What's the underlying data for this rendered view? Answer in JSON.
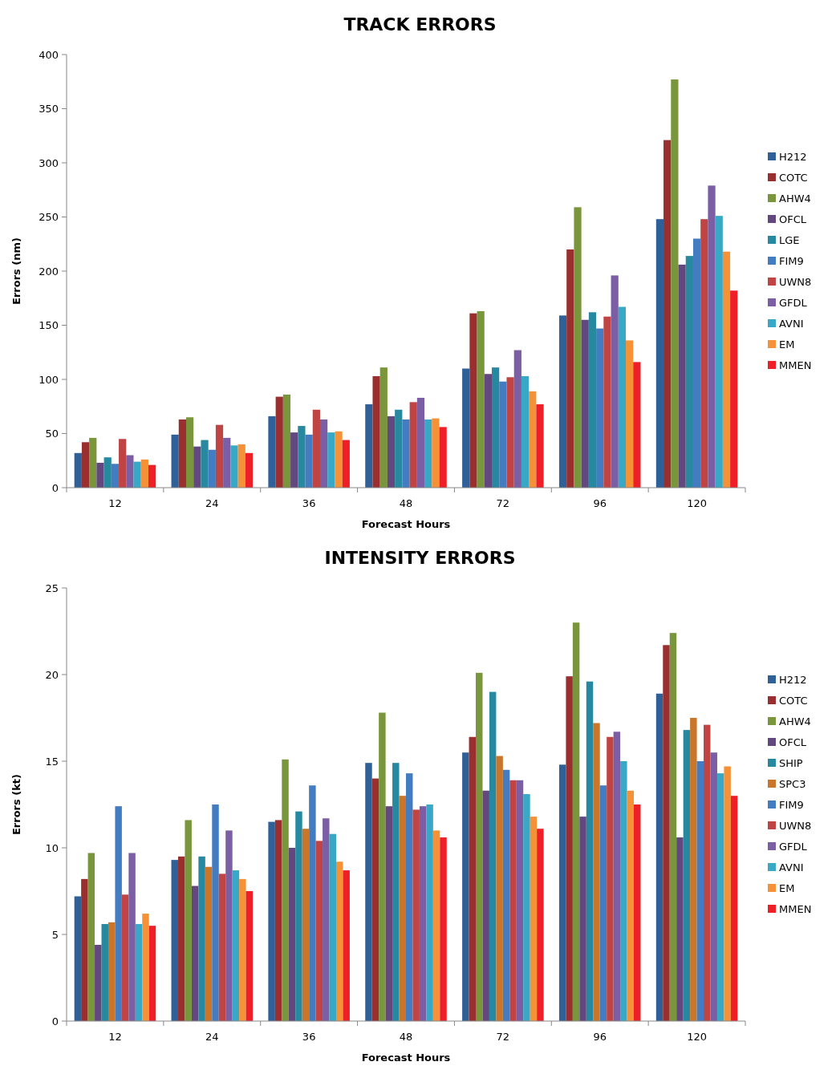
{
  "chart_data": [
    {
      "type": "bar",
      "title": "TRACK ERRORS",
      "xlabel": "Forecast Hours",
      "ylabel": "Errors (nm)",
      "categories": [
        "12",
        "24",
        "36",
        "48",
        "72",
        "96",
        "120"
      ],
      "ylim": [
        0,
        400
      ],
      "yticks": [
        0,
        50,
        100,
        150,
        200,
        250,
        300,
        350,
        400
      ],
      "grid": false,
      "legend": "right",
      "series": [
        {
          "name": "H212",
          "color": "#2f6098",
          "values": [
            32,
            49,
            66,
            77,
            110,
            159,
            248
          ]
        },
        {
          "name": "COTC",
          "color": "#9a2f2f",
          "values": [
            42,
            63,
            84,
            103,
            161,
            220,
            321
          ]
        },
        {
          "name": "AHW4",
          "color": "#7a963c",
          "values": [
            46,
            65,
            86,
            111,
            163,
            259,
            377
          ]
        },
        {
          "name": "OFCL",
          "color": "#63487f",
          "values": [
            23,
            38,
            51,
            66,
            105,
            155,
            206
          ]
        },
        {
          "name": "LGE",
          "color": "#2789a0",
          "values": [
            28,
            44,
            57,
            72,
            111,
            162,
            214
          ]
        },
        {
          "name": "FIM9",
          "color": "#437cc0",
          "values": [
            22,
            35,
            49,
            63,
            98,
            147,
            230
          ]
        },
        {
          "name": "UWN8",
          "color": "#c04444",
          "values": [
            45,
            58,
            72,
            79,
            102,
            158,
            248
          ]
        },
        {
          "name": "GFDL",
          "color": "#7b5ea3",
          "values": [
            30,
            46,
            63,
            83,
            127,
            196,
            279
          ]
        },
        {
          "name": "AVNI",
          "color": "#38a8c6",
          "values": [
            24,
            39,
            51,
            63,
            103,
            167,
            251
          ]
        },
        {
          "name": "EM",
          "color": "#f59237",
          "values": [
            26,
            40,
            52,
            64,
            89,
            136,
            218
          ]
        },
        {
          "name": "MMEN",
          "color": "#ee1f26",
          "values": [
            21,
            32,
            44,
            56,
            77,
            116,
            182
          ]
        }
      ]
    },
    {
      "type": "bar",
      "title": "INTENSITY ERRORS",
      "xlabel": "Forecast Hours",
      "ylabel": "Errors (kt)",
      "categories": [
        "12",
        "24",
        "36",
        "48",
        "72",
        "96",
        "120"
      ],
      "ylim": [
        0,
        25
      ],
      "yticks": [
        0,
        5,
        10,
        15,
        20,
        25
      ],
      "grid": false,
      "legend": "right",
      "series": [
        {
          "name": "H212",
          "color": "#2f6098",
          "values": [
            7.2,
            9.3,
            11.5,
            14.9,
            15.5,
            14.8,
            18.9
          ]
        },
        {
          "name": "COTC",
          "color": "#9a2f2f",
          "values": [
            8.2,
            9.5,
            11.6,
            14.0,
            16.4,
            19.9,
            21.7
          ]
        },
        {
          "name": "AHW4",
          "color": "#7a963c",
          "values": [
            9.7,
            11.6,
            15.1,
            17.8,
            20.1,
            23.0,
            22.4
          ]
        },
        {
          "name": "OFCL",
          "color": "#63487f",
          "values": [
            4.4,
            7.8,
            10.0,
            12.4,
            13.3,
            11.8,
            10.6
          ]
        },
        {
          "name": "SHIP",
          "color": "#2789a0",
          "values": [
            5.6,
            9.5,
            12.1,
            14.9,
            19.0,
            19.6,
            16.8
          ]
        },
        {
          "name": "SPC3",
          "color": "#c9762a",
          "values": [
            5.7,
            8.9,
            11.1,
            13.0,
            15.3,
            17.2,
            17.5
          ]
        },
        {
          "name": "FIM9",
          "color": "#437cc0",
          "values": [
            12.4,
            12.5,
            13.6,
            14.3,
            14.5,
            13.6,
            15.0
          ]
        },
        {
          "name": "UWN8",
          "color": "#c04444",
          "values": [
            7.3,
            8.5,
            10.4,
            12.2,
            13.9,
            16.4,
            17.1
          ]
        },
        {
          "name": "GFDL",
          "color": "#7b5ea3",
          "values": [
            9.7,
            11.0,
            11.7,
            12.4,
            13.9,
            16.7,
            15.5
          ]
        },
        {
          "name": "AVNI",
          "color": "#38a8c6",
          "values": [
            5.6,
            8.7,
            10.8,
            12.5,
            13.1,
            15.0,
            14.3
          ]
        },
        {
          "name": "EM",
          "color": "#f59237",
          "values": [
            6.2,
            8.2,
            9.2,
            11.0,
            11.8,
            13.3,
            14.7
          ]
        },
        {
          "name": "MMEN",
          "color": "#ee1f26",
          "values": [
            5.5,
            7.5,
            8.7,
            10.6,
            11.1,
            12.5,
            13.0
          ]
        }
      ]
    }
  ]
}
